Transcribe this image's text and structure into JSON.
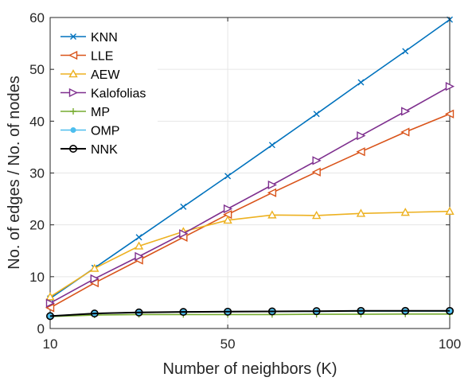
{
  "chart_data": {
    "type": "line",
    "title": "",
    "xlabel": "Number of neighbors (K)",
    "ylabel": "No. of edges / No. of nodes",
    "xlim": [
      10,
      100
    ],
    "ylim": [
      0,
      60
    ],
    "xticks": [
      10,
      50,
      100
    ],
    "yticks": [
      0,
      10,
      20,
      30,
      40,
      50,
      60
    ],
    "grid": true,
    "legend_position": "top-left",
    "x": [
      10,
      20,
      30,
      40,
      50,
      60,
      70,
      80,
      90,
      100
    ],
    "series": [
      {
        "name": "KNN",
        "color": "#0072BD",
        "marker": "x",
        "values": [
          5.8,
          11.7,
          17.6,
          23.5,
          29.4,
          35.4,
          41.4,
          47.5,
          53.5,
          59.6
        ]
      },
      {
        "name": "LLE",
        "color": "#D95319",
        "marker": "triangle-left",
        "values": [
          4.0,
          8.8,
          13.2,
          17.6,
          22.0,
          26.2,
          30.2,
          34.1,
          37.9,
          41.4
        ]
      },
      {
        "name": "AEW",
        "color": "#EDB120",
        "marker": "triangle-up",
        "values": [
          6.1,
          11.6,
          15.9,
          18.7,
          20.9,
          21.9,
          21.8,
          22.2,
          22.4,
          22.6
        ]
      },
      {
        "name": "Kalofolias",
        "color": "#7E2F8E",
        "marker": "triangle-right",
        "values": [
          4.9,
          9.6,
          13.9,
          18.3,
          23.1,
          27.7,
          32.4,
          37.2,
          41.9,
          46.7
        ]
      },
      {
        "name": "MP",
        "color": "#77AC30",
        "marker": "plus",
        "values": [
          2.3,
          2.6,
          2.7,
          2.7,
          2.7,
          2.7,
          2.75,
          2.75,
          2.8,
          2.8
        ]
      },
      {
        "name": "OMP",
        "color": "#4DBEEE",
        "marker": "dot",
        "values": [
          2.4,
          2.9,
          3.1,
          3.2,
          3.25,
          3.3,
          3.3,
          3.35,
          3.35,
          3.35
        ]
      },
      {
        "name": "NNK",
        "color": "#000000",
        "marker": "circle",
        "values": [
          2.4,
          2.9,
          3.1,
          3.2,
          3.25,
          3.3,
          3.35,
          3.4,
          3.4,
          3.4
        ]
      }
    ]
  }
}
